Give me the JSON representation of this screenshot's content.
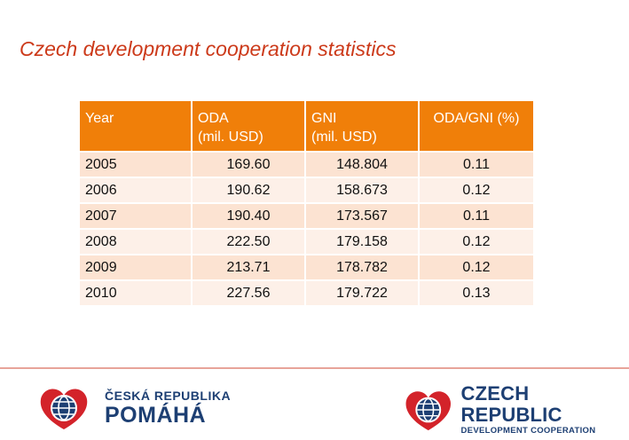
{
  "title": "Czech development cooperation statistics",
  "table": {
    "headers": {
      "year": "Year",
      "oda_line1": "ODA",
      "oda_line2": "(mil. USD)",
      "gni_line1": "GNI",
      "gni_line2": "(mil. USD)",
      "ratio": "ODA/GNI (%)"
    },
    "rows": [
      {
        "year": "2005",
        "oda": "169.60",
        "gni": "148.804",
        "ratio": "0.11"
      },
      {
        "year": "2006",
        "oda": "190.62",
        "gni": "158.673",
        "ratio": "0.12"
      },
      {
        "year": "2007",
        "oda": "190.40",
        "gni": "173.567",
        "ratio": "0.11"
      },
      {
        "year": "2008",
        "oda": "222.50",
        "gni": "179.158",
        "ratio": "0.12"
      },
      {
        "year": "2009",
        "oda": "213.71",
        "gni": "178.782",
        "ratio": "0.12"
      },
      {
        "year": "2010",
        "oda": "227.56",
        "gni": "179.722",
        "ratio": "0.13"
      }
    ]
  },
  "logos": {
    "left": {
      "line1": "ČESKÁ REPUBLIKA",
      "line2": "POMÁHÁ"
    },
    "right": {
      "line1": "CZECH REPUBLIC",
      "line2": "DEVELOPMENT COOPERATION"
    }
  },
  "colors": {
    "title": "#cc3a1a",
    "header_bg": "#f07f09",
    "row_odd": "#fce3d2",
    "row_even": "#fdf0e8",
    "logo_blue": "#1d3f73",
    "logo_red": "#d3232a"
  }
}
